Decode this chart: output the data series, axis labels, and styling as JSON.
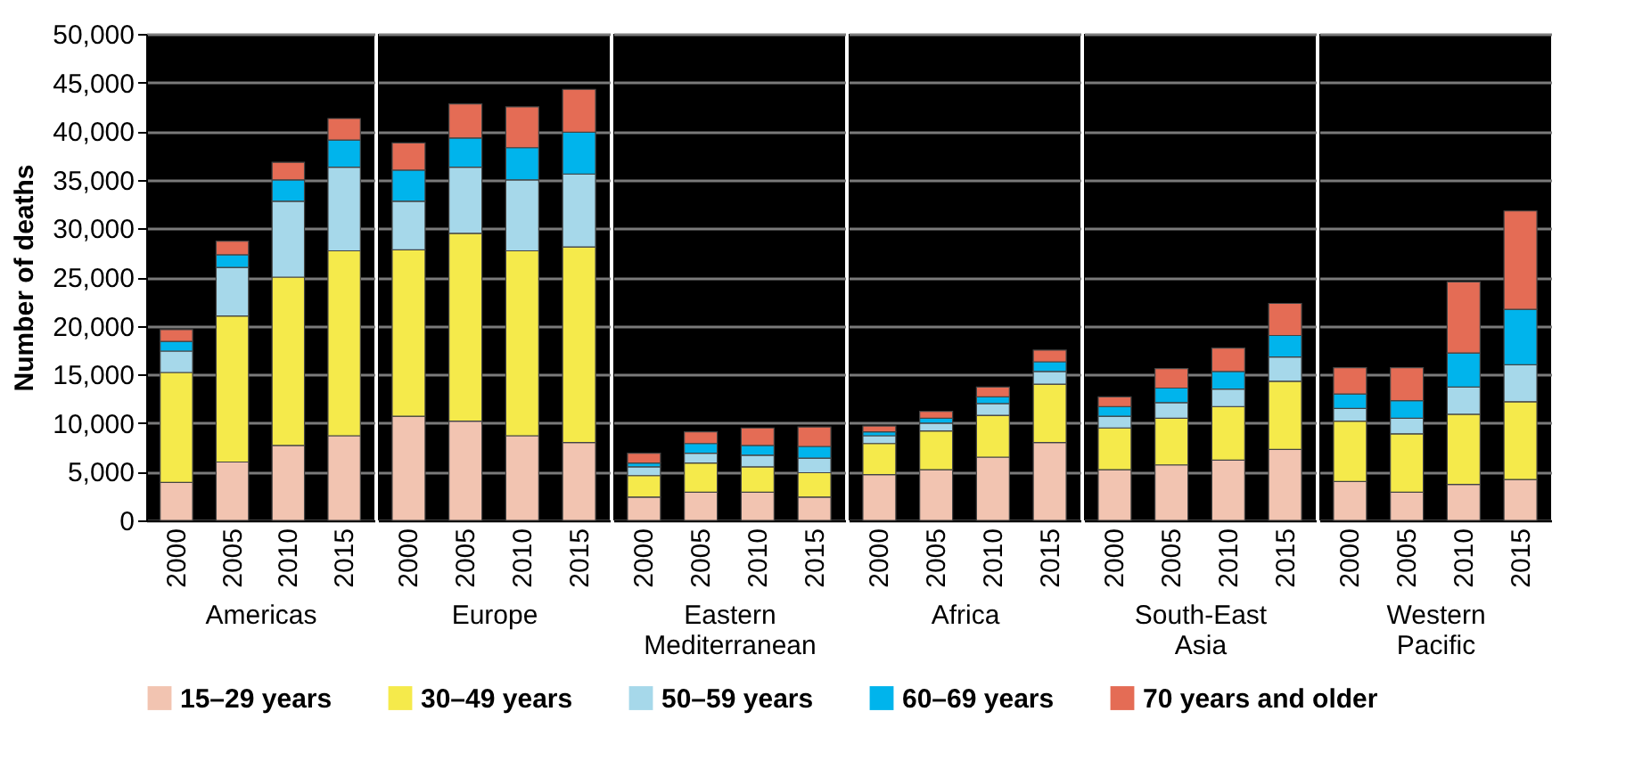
{
  "chart_data": [
    {
      "type": "bar",
      "stacked": true,
      "xlabel": "Americas",
      "ylabel": "Number of deaths",
      "categories": [
        "2000",
        "2005",
        "2010",
        "2015"
      ],
      "ylim": [
        0,
        50000
      ],
      "yticks": [
        0,
        {
          "value": 5000,
          "label": "5,000"
        },
        {
          "value": 10000,
          "label": "10,000"
        },
        {
          "value": 15000,
          "label": "15,000"
        },
        {
          "value": 20000,
          "label": "20,000"
        },
        {
          "value": 25000,
          "label": "25,000"
        },
        {
          "value": 30000,
          "label": "30,000"
        },
        {
          "value": 35000,
          "label": "35,000"
        },
        {
          "value": 40000,
          "label": "40,000"
        },
        {
          "value": 45000,
          "label": "45,000"
        },
        {
          "value": 50000,
          "label": "50,000"
        }
      ],
      "grid": "y",
      "legend": "bottom",
      "series": [
        {
          "name": "15–29 years",
          "color": "#f2c4b1",
          "values": [
            3900,
            6000,
            7700,
            8700
          ]
        },
        {
          "name": "30–49 years",
          "color": "#f5ea4b",
          "values": [
            11300,
            15000,
            17300,
            19000
          ]
        },
        {
          "name": "50–59 years",
          "color": "#a6d8ea",
          "values": [
            2200,
            5000,
            7800,
            8600
          ]
        },
        {
          "name": "60–69 years",
          "color": "#00b4ec",
          "values": [
            1000,
            1300,
            2200,
            2800
          ]
        },
        {
          "name": "70 years and older",
          "color": "#e46c55",
          "values": [
            1200,
            1400,
            1800,
            2200
          ]
        }
      ]
    },
    {
      "type": "bar",
      "stacked": true,
      "xlabel": "Europe",
      "categories": [
        "2000",
        "2005",
        "2010",
        "2015"
      ],
      "ylim": [
        0,
        50000
      ],
      "yticks": [
        0,
        5000,
        10000,
        15000,
        20000,
        25000,
        30000,
        35000,
        40000,
        45000,
        50000
      ],
      "grid": "y",
      "tick_labels": "x",
      "series": [
        {
          "name": "15–29 years",
          "color": "#f2c4b1",
          "values": [
            10700,
            10200,
            8700,
            8000
          ]
        },
        {
          "name": "30–49 years",
          "color": "#f5ea4b",
          "values": [
            17100,
            19300,
            19000,
            20100
          ]
        },
        {
          "name": "50–59 years",
          "color": "#a6d8ea",
          "values": [
            5000,
            6800,
            7300,
            7500
          ]
        },
        {
          "name": "60–69 years",
          "color": "#00b4ec",
          "values": [
            3200,
            3000,
            3300,
            4300
          ]
        },
        {
          "name": "70 years and older",
          "color": "#e46c55",
          "values": [
            2800,
            3500,
            4200,
            4400
          ]
        }
      ]
    },
    {
      "type": "bar",
      "stacked": true,
      "xlabel": "Eastern Mediterranean",
      "categories": [
        "2000",
        "2005",
        "2010",
        "2015"
      ],
      "ylim": [
        0,
        50000
      ],
      "yticks": [
        0,
        5000,
        10000,
        15000,
        20000,
        25000,
        30000,
        35000,
        40000,
        45000,
        50000
      ],
      "grid": "y",
      "tick_labels": "x",
      "series": [
        {
          "name": "15–29 years",
          "color": "#f2c4b1",
          "values": [
            2400,
            2900,
            2900,
            2400
          ]
        },
        {
          "name": "30–49 years",
          "color": "#f5ea4b",
          "values": [
            2200,
            3000,
            2600,
            2500
          ]
        },
        {
          "name": "50–59 years",
          "color": "#a6d8ea",
          "values": [
            900,
            1000,
            1200,
            1500
          ]
        },
        {
          "name": "60–69 years",
          "color": "#00b4ec",
          "values": [
            400,
            1000,
            1000,
            1200
          ]
        },
        {
          "name": "70 years and older",
          "color": "#e46c55",
          "values": [
            1000,
            1200,
            1800,
            2000
          ]
        }
      ]
    },
    {
      "type": "bar",
      "stacked": true,
      "xlabel": "Africa",
      "categories": [
        "2000",
        "2005",
        "2010",
        "2015"
      ],
      "ylim": [
        0,
        50000
      ],
      "yticks": [
        0,
        5000,
        10000,
        15000,
        20000,
        25000,
        30000,
        35000,
        40000,
        45000,
        50000
      ],
      "grid": "y",
      "tick_labels": "x",
      "series": [
        {
          "name": "15–29 years",
          "color": "#f2c4b1",
          "values": [
            4700,
            5200,
            6500,
            8000
          ]
        },
        {
          "name": "30–49 years",
          "color": "#f5ea4b",
          "values": [
            3200,
            4000,
            4300,
            6000
          ]
        },
        {
          "name": "50–59 years",
          "color": "#a6d8ea",
          "values": [
            800,
            800,
            1200,
            1300
          ]
        },
        {
          "name": "60–69 years",
          "color": "#00b4ec",
          "values": [
            400,
            500,
            700,
            1000
          ]
        },
        {
          "name": "70 years and older",
          "color": "#e46c55",
          "values": [
            600,
            700,
            1000,
            1200
          ]
        }
      ]
    },
    {
      "type": "bar",
      "stacked": true,
      "xlabel": "South-East Asia",
      "categories": [
        "2000",
        "2005",
        "2010",
        "2015"
      ],
      "ylim": [
        0,
        50000
      ],
      "yticks": [
        0,
        5000,
        10000,
        15000,
        20000,
        25000,
        30000,
        35000,
        40000,
        45000,
        50000
      ],
      "grid": "y",
      "tick_labels": "x",
      "series": [
        {
          "name": "15–29 years",
          "color": "#f2c4b1",
          "values": [
            5200,
            5700,
            6200,
            7300
          ]
        },
        {
          "name": "30–49 years",
          "color": "#f5ea4b",
          "values": [
            4300,
            4800,
            5500,
            7000
          ]
        },
        {
          "name": "50–59 years",
          "color": "#a6d8ea",
          "values": [
            1200,
            1600,
            1800,
            2500
          ]
        },
        {
          "name": "60–69 years",
          "color": "#00b4ec",
          "values": [
            1000,
            1500,
            1800,
            2200
          ]
        },
        {
          "name": "70 years and older",
          "color": "#e46c55",
          "values": [
            1000,
            2000,
            2400,
            3300
          ]
        }
      ]
    },
    {
      "type": "bar",
      "stacked": true,
      "xlabel": "Western Pacific",
      "categories": [
        "2000",
        "2005",
        "2010",
        "2015"
      ],
      "ylim": [
        0,
        50000
      ],
      "yticks": [
        0,
        5000,
        10000,
        15000,
        20000,
        25000,
        30000,
        35000,
        40000,
        45000,
        50000
      ],
      "grid": "y",
      "tick_labels": "x",
      "series": [
        {
          "name": "15–29 years",
          "color": "#f2c4b1",
          "values": [
            4000,
            2900,
            3700,
            4200
          ]
        },
        {
          "name": "30–49 years",
          "color": "#f5ea4b",
          "values": [
            6200,
            6000,
            7200,
            8000
          ]
        },
        {
          "name": "50–59 years",
          "color": "#a6d8ea",
          "values": [
            1300,
            1600,
            2800,
            3800
          ]
        },
        {
          "name": "60–69 years",
          "color": "#00b4ec",
          "values": [
            1500,
            1800,
            3500,
            5700
          ]
        },
        {
          "name": "70 years and older",
          "color": "#e46c55",
          "values": [
            2700,
            3400,
            7300,
            10100
          ]
        }
      ]
    }
  ]
}
